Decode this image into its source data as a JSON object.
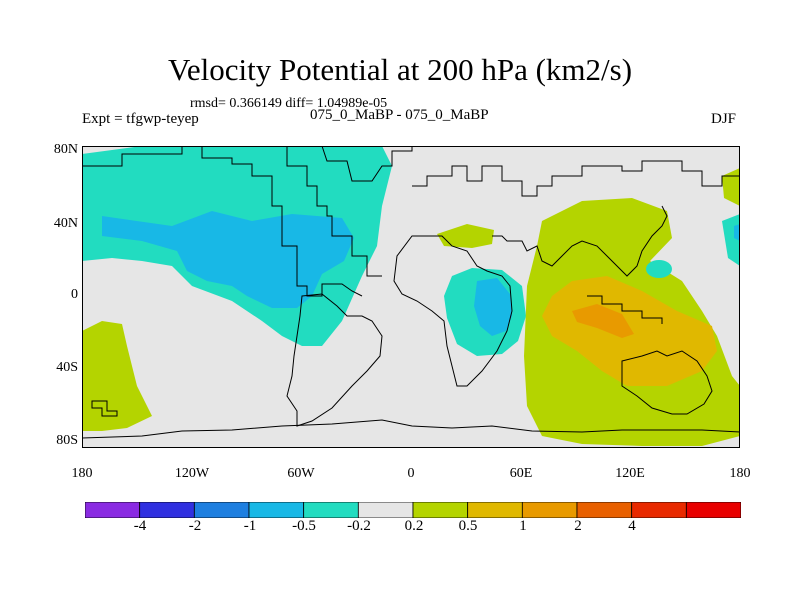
{
  "title": "Velocity Potential at 200 hPa (km2/s)",
  "stats": "rmsd= 0.366149 diff= 1.04989e-05",
  "expt": "Expt = tfgwp-teyep",
  "cases": "075_0_MaBP - 075_0_MaBP",
  "season": "DJF",
  "lat_labels": [
    "80N",
    "40N",
    "0",
    "40S",
    "80S"
  ],
  "lon_labels": [
    "180",
    "120W",
    "60W",
    "0",
    "60E",
    "120E",
    "180"
  ],
  "colorbar": {
    "colors": [
      "#8a2be2",
      "#3030e0",
      "#1e7fe0",
      "#18b8e6",
      "#22dcc0",
      "#e6e6e6",
      "#b4d400",
      "#e0b800",
      "#e89a00",
      "#e86000",
      "#e82a00",
      "#e80000"
    ],
    "labels": [
      "-4",
      "-2",
      "-1",
      "-0.5",
      "-0.2",
      "0.2",
      "0.5",
      "1",
      "2",
      "4"
    ]
  },
  "fill_colors": {
    "background": "#e6e6e6",
    "neg_02": "#22dcc0",
    "neg_05": "#18b8e6",
    "pos_02": "#b4d400",
    "pos_05": "#e0b800",
    "pos_1": "#e89a00"
  }
}
